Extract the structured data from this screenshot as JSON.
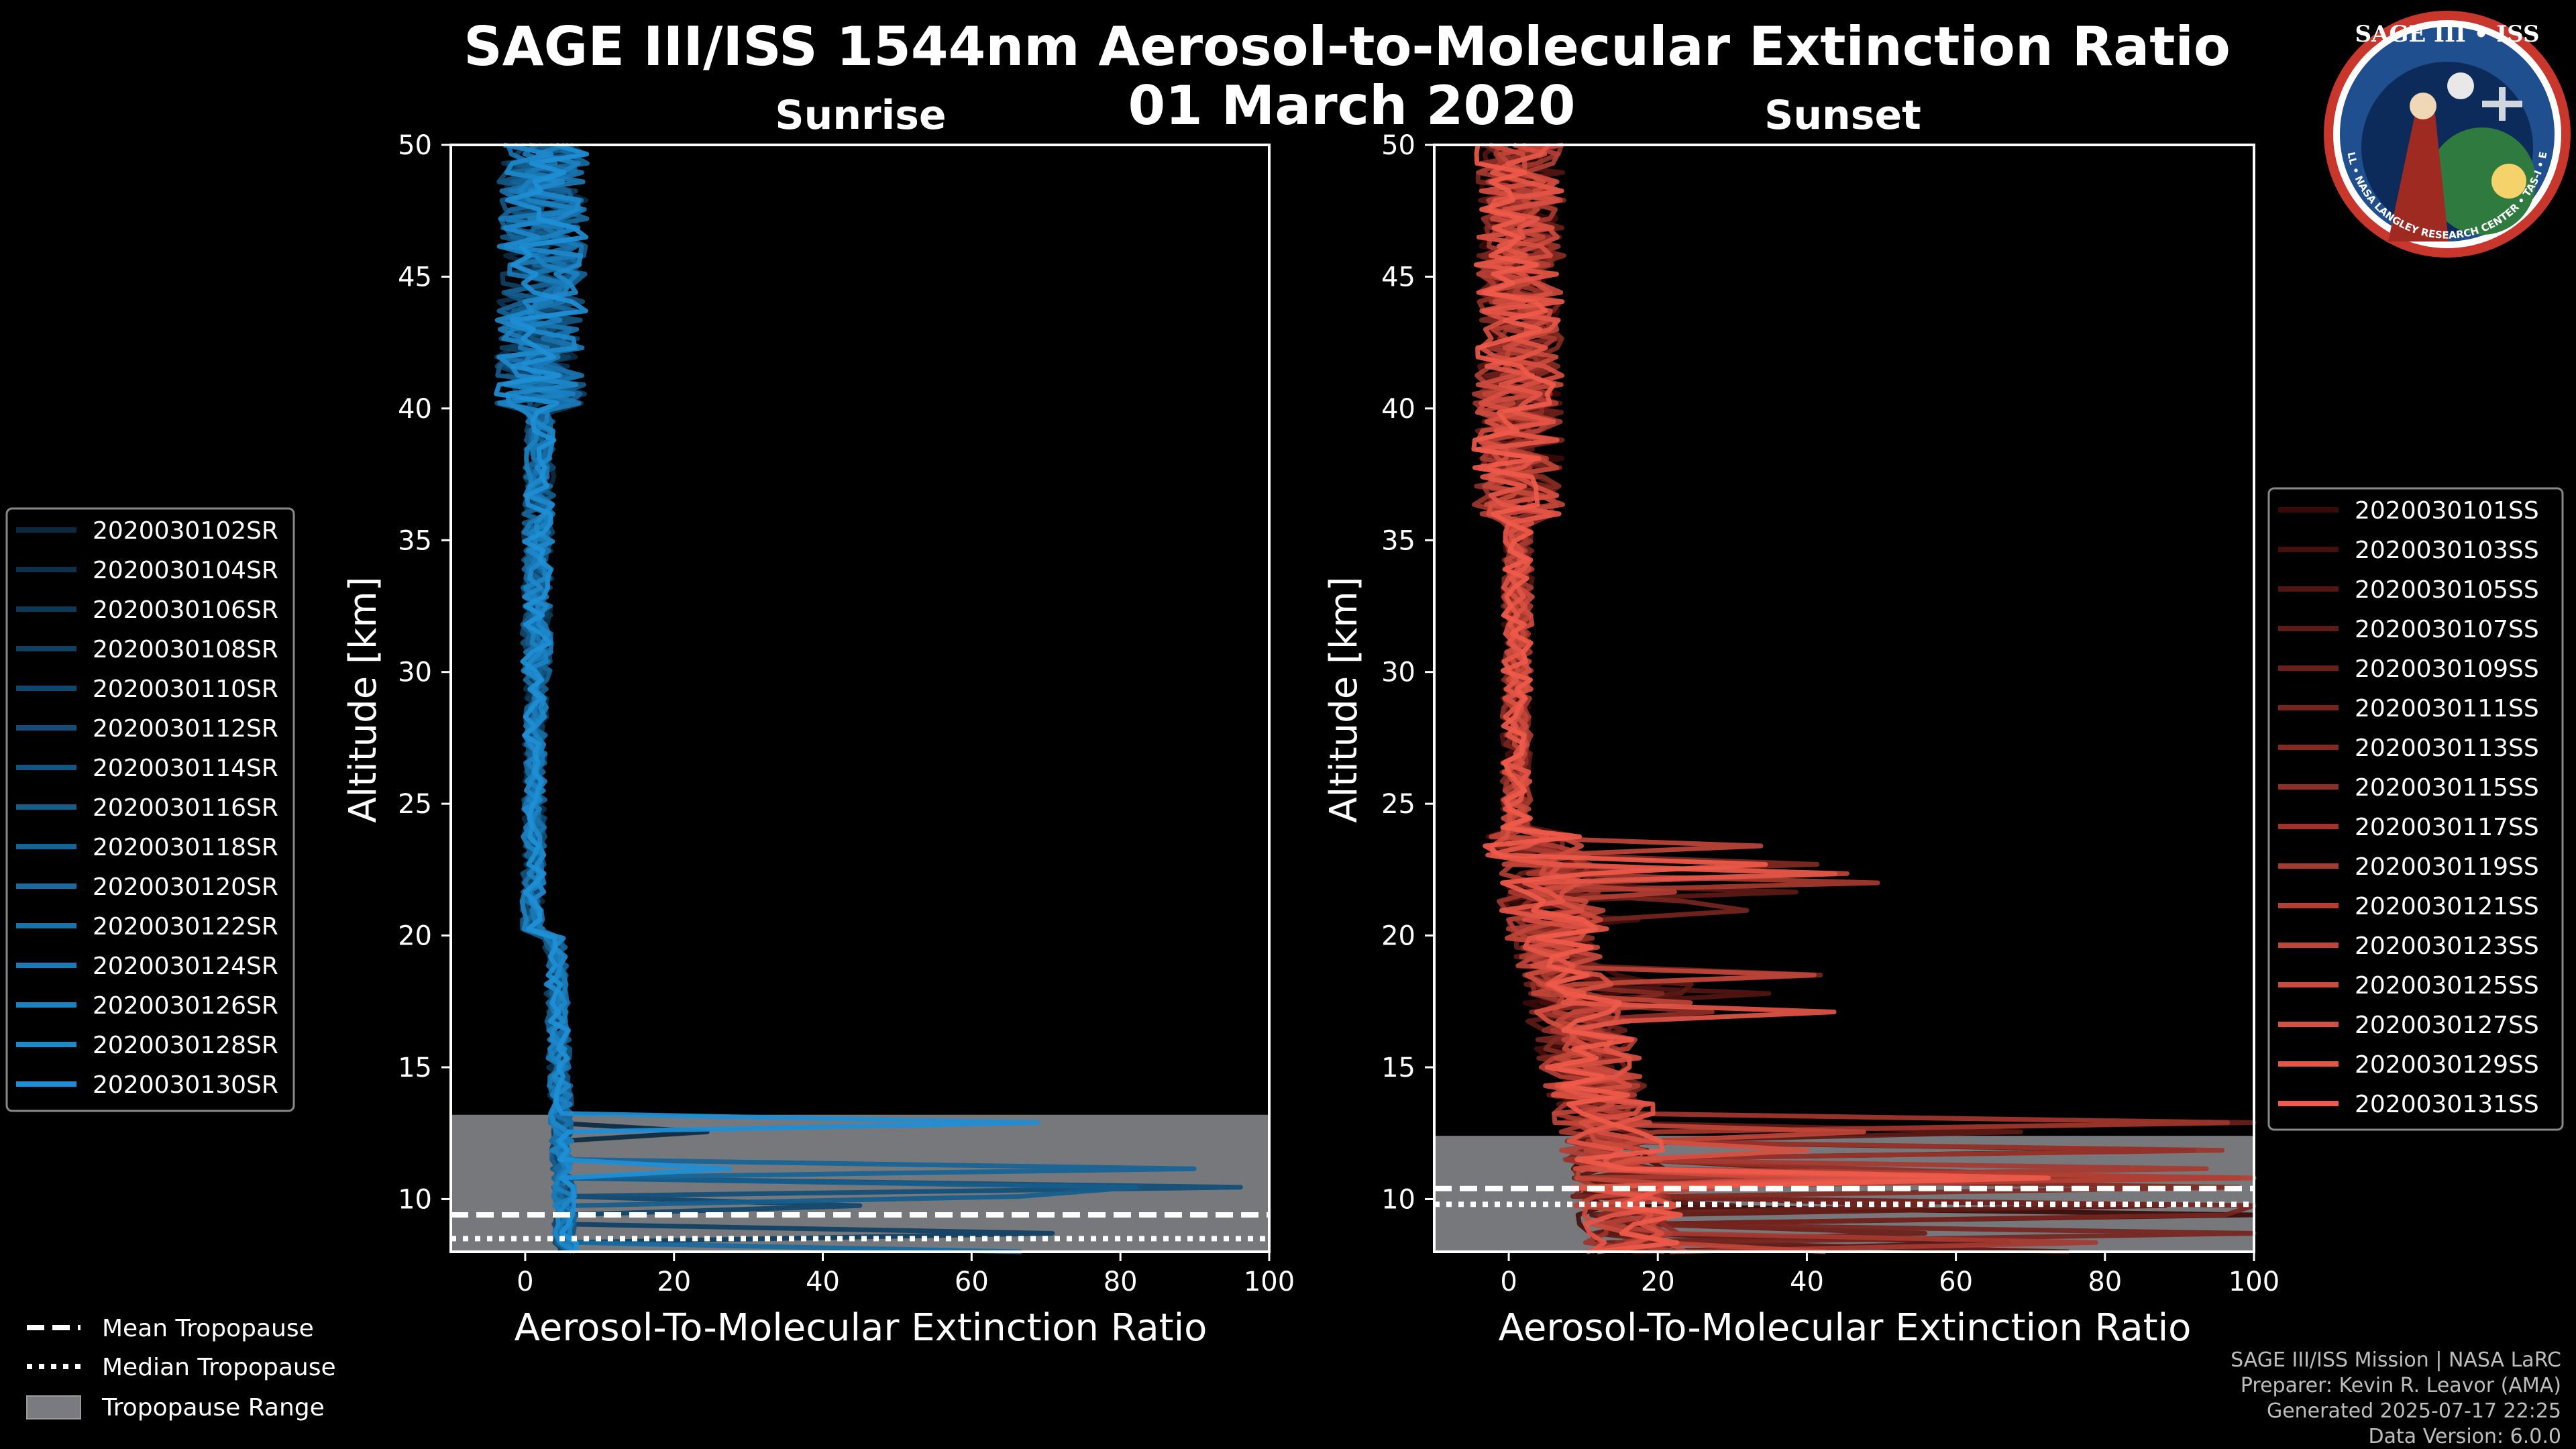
{
  "chart_data": {
    "title_line1": "SAGE III/ISS 1544nm Aerosol-to-Molecular Extinction Ratio",
    "title_line2": "01 March 2020",
    "ylabel": "Altitude [km]",
    "xlabel": "Aerosol-To-Molecular Extinction Ratio",
    "xlim": [
      -10,
      100
    ],
    "ylim": [
      8,
      50
    ],
    "xticks": [
      0,
      20,
      40,
      60,
      80,
      100
    ],
    "yticks": [
      10,
      15,
      20,
      25,
      30,
      35,
      40,
      45,
      50
    ],
    "panels": [
      {
        "name": "Sunrise",
        "type": "line",
        "color_dark": "#0b2a42",
        "color_light": "#1e8fd6",
        "tropopause": {
          "mean_km": 9.4,
          "median_km": 8.5,
          "range_km": [
            8.0,
            13.2
          ]
        },
        "legend_position": "left",
        "series": [
          "2020030102SR",
          "2020030104SR",
          "2020030106SR",
          "2020030108SR",
          "2020030110SR",
          "2020030112SR",
          "2020030114SR",
          "2020030116SR",
          "2020030118SR",
          "2020030120SR",
          "2020030122SR",
          "2020030124SR",
          "2020030126SR",
          "2020030128SR",
          "2020030130SR"
        ]
      },
      {
        "name": "Sunset",
        "type": "line",
        "color_dark": "#3a0a08",
        "color_light": "#ef5a4a",
        "tropopause": {
          "mean_km": 10.4,
          "median_km": 9.8,
          "range_km": [
            8.0,
            12.4
          ]
        },
        "legend_position": "right",
        "series": [
          "2020030101SS",
          "2020030103SS",
          "2020030105SS",
          "2020030107SS",
          "2020030109SS",
          "2020030111SS",
          "2020030113SS",
          "2020030115SS",
          "2020030117SS",
          "2020030119SS",
          "2020030121SS",
          "2020030123SS",
          "2020030125SS",
          "2020030127SS",
          "2020030129SS",
          "2020030131SS"
        ]
      }
    ],
    "tropo_legend": [
      "Mean Tropopause",
      "Median Tropopause",
      "Tropopause Range"
    ]
  },
  "credits": {
    "line1": "SAGE III/ISS Mission | NASA LaRC",
    "line2": "Preparer: Kevin R. Leavor (AMA)",
    "line3": "Generated 2025-07-17 22:25",
    "line4": "Data Version: 6.0.0"
  },
  "logo": {
    "title": "SAGE III • ISS",
    "ring_text": "BALL • NASA LANGLEY RESEARCH CENTER • TAS-I • ESA"
  }
}
